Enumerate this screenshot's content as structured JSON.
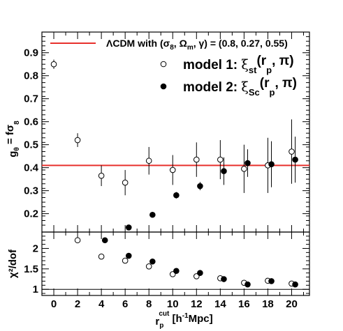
{
  "chart_data": [
    {
      "type": "scatter",
      "panel": "top",
      "ylabel": "g_θ = fσ_8",
      "ylim": [
        0.12,
        0.99
      ],
      "xlim": [
        -1,
        21.5
      ],
      "yticks": [
        0.2,
        0.3,
        0.4,
        0.5,
        0.6,
        0.7,
        0.8,
        0.9
      ],
      "reference_line": {
        "y": 0.41,
        "color": "#e8302c",
        "label_parts": [
          "ΛCDM with (σ",
          "8",
          ", Ω",
          "m",
          ", γ) = (0.8, 0.27, 0.55)"
        ]
      },
      "legend_position": "top-right",
      "series": [
        {
          "name": "model 1",
          "label_parts": [
            "model 1: ",
            "ξ",
            "st",
            "(r",
            "p",
            ", π)"
          ],
          "marker": "open-circle",
          "x": [
            0,
            2,
            4,
            6,
            8,
            10,
            12,
            14,
            16,
            18,
            20
          ],
          "y": [
            0.85,
            0.52,
            0.365,
            0.335,
            0.43,
            0.39,
            0.435,
            0.435,
            0.395,
            0.41,
            0.47
          ],
          "err": [
            0.02,
            0.03,
            0.045,
            0.055,
            0.06,
            0.065,
            0.075,
            0.085,
            0.105,
            0.12,
            0.14
          ]
        },
        {
          "name": "model 2",
          "label_parts": [
            "model 2: ",
            "ξ",
            "Sc",
            "(r",
            "p",
            ", π)"
          ],
          "marker": "filled-circle",
          "x": [
            6.3,
            8.3,
            10.3,
            12.3,
            14.3,
            16.3,
            18.3,
            20.3
          ],
          "y": [
            0.14,
            0.195,
            0.28,
            0.32,
            0.385,
            0.42,
            0.415,
            0.435
          ],
          "err": [
            0.01,
            0.012,
            0.014,
            0.018,
            0.06,
            0.06,
            0.1,
            0.1
          ]
        }
      ]
    },
    {
      "type": "scatter",
      "panel": "bottom",
      "ylabel": "χ²/dof",
      "xlabel_parts": [
        "r",
        "p",
        "cut",
        " [h",
        "-1",
        "Mpc]"
      ],
      "ylim": [
        0.85,
        2.4
      ],
      "xlim": [
        -1,
        21.5
      ],
      "xticks": [
        0,
        2,
        4,
        6,
        8,
        10,
        12,
        14,
        16,
        18,
        20
      ],
      "yticks": [
        1,
        1.5,
        2
      ],
      "reference_line": {
        "y": 1
      },
      "series": [
        {
          "name": "model 1",
          "marker": "open-circle",
          "x": [
            2,
            4,
            6,
            8,
            10,
            12,
            14,
            16,
            18,
            20
          ],
          "y": [
            2.2,
            1.8,
            1.7,
            1.56,
            1.37,
            1.32,
            1.27,
            1.16,
            1.21,
            1.14
          ]
        },
        {
          "name": "model 2",
          "marker": "filled-circle",
          "x": [
            4.3,
            6.3,
            8.3,
            10.3,
            12.3,
            14.3,
            16.3,
            18.3,
            20.3
          ],
          "y": [
            2.2,
            1.82,
            1.68,
            1.45,
            1.4,
            1.25,
            1.12,
            1.2,
            1.12
          ]
        }
      ]
    }
  ]
}
